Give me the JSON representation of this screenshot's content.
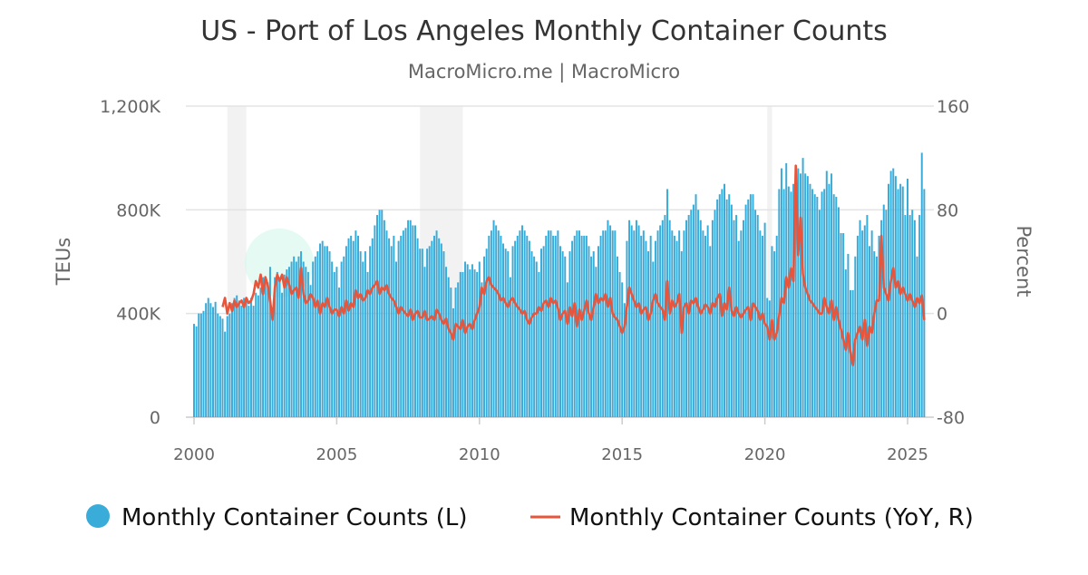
{
  "chart_data": {
    "type": "bar+line",
    "title": "US - Port of Los Angeles Monthly Container Counts",
    "subtitle": "MacroMicro.me | MacroMicro",
    "frequency": "monthly",
    "x_start": "2000-01",
    "x_ticks": [
      "2000",
      "2005",
      "2010",
      "2015",
      "2020",
      "2025"
    ],
    "y_left": {
      "label": "TEUs",
      "ticks": [
        "0",
        "400K",
        "800K",
        "1,200K"
      ],
      "range": [
        0,
        1200000
      ]
    },
    "y_right": {
      "label": "Percent",
      "ticks": [
        "-80",
        "0",
        "80",
        "160"
      ],
      "range": [
        -80,
        160
      ]
    },
    "grid": true,
    "legend_position": "bottom",
    "recession_shading": [
      [
        "2001-03",
        "2001-11"
      ],
      [
        "2007-12",
        "2009-06"
      ],
      [
        "2020-02",
        "2020-04"
      ]
    ],
    "colors": {
      "bars": "#3aacd9",
      "line": "#e8553b",
      "shading": "#f2f2f2"
    },
    "series": [
      {
        "name": "Monthly Container Counts (L)",
        "type": "bar",
        "axis": "left",
        "unit": "K TEUs",
        "start": "2000-01",
        "values": [
          360,
          350,
          400,
          400,
          410,
          440,
          460,
          440,
          425,
          445,
          400,
          390,
          380,
          330,
          390,
          400,
          440,
          460,
          470,
          450,
          430,
          460,
          450,
          430,
          460,
          430,
          480,
          470,
          500,
          540,
          530,
          520,
          580,
          380,
          540,
          560,
          540,
          480,
          550,
          570,
          580,
          600,
          620,
          600,
          620,
          640,
          600,
          580,
          560,
          510,
          600,
          620,
          640,
          670,
          680,
          660,
          660,
          640,
          600,
          560,
          580,
          500,
          600,
          620,
          660,
          690,
          700,
          680,
          720,
          700,
          640,
          600,
          640,
          560,
          660,
          690,
          740,
          780,
          800,
          800,
          760,
          720,
          690,
          660,
          700,
          600,
          680,
          700,
          720,
          730,
          760,
          760,
          740,
          740,
          690,
          650,
          650,
          580,
          650,
          660,
          680,
          700,
          720,
          690,
          670,
          640,
          580,
          540,
          500,
          420,
          500,
          520,
          560,
          560,
          600,
          590,
          570,
          590,
          570,
          560,
          600,
          520,
          620,
          650,
          700,
          720,
          760,
          740,
          720,
          700,
          670,
          650,
          640,
          540,
          660,
          680,
          700,
          720,
          740,
          720,
          700,
          680,
          640,
          620,
          600,
          560,
          650,
          660,
          700,
          720,
          720,
          700,
          700,
          720,
          660,
          640,
          620,
          520,
          640,
          680,
          700,
          720,
          720,
          700,
          700,
          700,
          660,
          620,
          640,
          580,
          660,
          700,
          720,
          720,
          760,
          740,
          720,
          720,
          620,
          560,
          520,
          440,
          680,
          760,
          740,
          720,
          760,
          740,
          700,
          720,
          680,
          640,
          700,
          600,
          680,
          720,
          740,
          760,
          780,
          880,
          760,
          720,
          700,
          680,
          720,
          640,
          720,
          760,
          780,
          800,
          820,
          860,
          800,
          760,
          720,
          700,
          740,
          660,
          760,
          800,
          840,
          860,
          880,
          900,
          840,
          860,
          820,
          760,
          780,
          680,
          720,
          760,
          820,
          840,
          860,
          860,
          800,
          780,
          720,
          700,
          750,
          460,
          450,
          660,
          640,
          700,
          880,
          960,
          880,
          980,
          890,
          870,
          900,
          800,
          960,
          940,
          1000,
          940,
          930,
          900,
          880,
          860,
          850,
          800,
          870,
          880,
          950,
          900,
          940,
          860,
          850,
          810,
          710,
          710,
          570,
          630,
          490,
          490,
          620,
          700,
          760,
          720,
          740,
          780,
          660,
          720,
          640,
          620,
          700,
          760,
          820,
          800,
          900,
          950,
          960,
          930,
          880,
          900,
          890,
          780,
          920,
          780,
          800,
          760,
          620,
          780,
          1020,
          880
        ]
      },
      {
        "name": "Monthly Container Counts (YoY, R)",
        "type": "line",
        "axis": "right",
        "unit": "%",
        "start": "2001-01",
        "values": [
          5,
          12,
          0,
          8,
          2,
          10,
          5,
          8,
          10,
          5,
          12,
          8,
          10,
          15,
          25,
          20,
          30,
          15,
          28,
          22,
          10,
          -5,
          20,
          30,
          25,
          30,
          20,
          28,
          22,
          15,
          18,
          20,
          12,
          35,
          15,
          8,
          10,
          15,
          12,
          5,
          10,
          0,
          8,
          5,
          12,
          5,
          0,
          3,
          3,
          -2,
          5,
          0,
          10,
          2,
          8,
          5,
          18,
          12,
          15,
          10,
          12,
          18,
          15,
          20,
          22,
          25,
          15,
          20,
          18,
          22,
          15,
          12,
          10,
          5,
          0,
          5,
          2,
          0,
          -2,
          3,
          -5,
          0,
          2,
          -3,
          -3,
          2,
          -5,
          -4,
          -2,
          -5,
          3,
          0,
          -5,
          -8,
          -4,
          -12,
          -15,
          -20,
          -8,
          -10,
          -12,
          -5,
          -15,
          -10,
          -8,
          -12,
          -5,
          0,
          5,
          20,
          15,
          25,
          28,
          22,
          20,
          18,
          15,
          10,
          12,
          8,
          5,
          10,
          12,
          8,
          5,
          3,
          0,
          2,
          -5,
          -8,
          -3,
          0,
          0,
          5,
          2,
          8,
          10,
          5,
          12,
          8,
          10,
          4,
          -5,
          0,
          2,
          -8,
          5,
          -2,
          8,
          -10,
          3,
          -5,
          2,
          10,
          0,
          -5,
          5,
          15,
          8,
          12,
          10,
          15,
          5,
          12,
          0,
          -3,
          -5,
          -10,
          -15,
          -10,
          5,
          20,
          15,
          10,
          5,
          8,
          0,
          3,
          5,
          -5,
          0,
          10,
          15,
          8,
          5,
          3,
          -5,
          25,
          0,
          10,
          5,
          8,
          15,
          -15,
          5,
          8,
          0,
          10,
          8,
          12,
          5,
          0,
          3,
          7,
          5,
          0,
          8,
          5,
          12,
          15,
          -2,
          8,
          3,
          20,
          2,
          -2,
          5,
          0,
          -3,
          0,
          3,
          5,
          -5,
          8,
          5,
          2,
          -5,
          0,
          -8,
          -10,
          -20,
          -5,
          -20,
          -15,
          -2,
          12,
          8,
          28,
          20,
          35,
          25,
          114,
          45,
          74,
          30,
          20,
          15,
          10,
          8,
          5,
          3,
          0,
          0,
          12,
          5,
          0,
          10,
          -5,
          5,
          -5,
          -12,
          -20,
          -28,
          -15,
          -30,
          -40,
          -20,
          -15,
          -10,
          -20,
          -5,
          -25,
          -10,
          -15,
          0,
          10,
          10,
          60,
          20,
          15,
          10,
          25,
          35,
          20,
          25,
          15,
          20,
          15,
          10,
          15,
          10,
          5,
          12,
          8,
          14,
          -5
        ]
      }
    ]
  }
}
